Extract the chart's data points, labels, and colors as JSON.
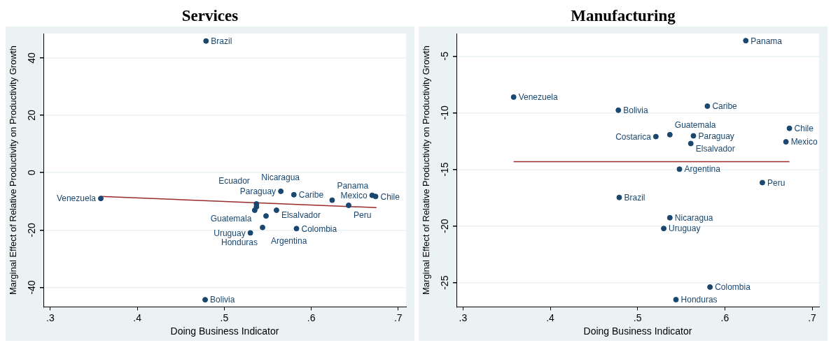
{
  "chart_data": [
    {
      "type": "scatter",
      "title": "Services",
      "xlabel": "Doing Business Indicator",
      "ylabel": "Marginal Effect of Relative Productivity on Productivity Growth",
      "xlim": [
        0.292,
        0.709
      ],
      "ylim": [
        -46.8,
        48.5
      ],
      "xticks": [
        {
          "value": 0.3,
          "label": ".3"
        },
        {
          "value": 0.4,
          "label": ".4"
        },
        {
          "value": 0.5,
          "label": ".5"
        },
        {
          "value": 0.6,
          "label": ".6"
        },
        {
          "value": 0.7,
          "label": ".7"
        }
      ],
      "yticks": [
        -40,
        -20,
        0,
        20,
        40
      ],
      "grid": "y",
      "legend": false,
      "marker": "circle",
      "series": [
        {
          "color": "#1a476f",
          "x": [
            0.479,
            0.358,
            0.565,
            0.58,
            0.624,
            0.67,
            0.674,
            0.643,
            0.537,
            0.537,
            0.535,
            0.56,
            0.548,
            0.544,
            0.583,
            0.53,
            0.478
          ],
          "values": [
            45.9,
            -9.0,
            -6.5,
            -7.7,
            -9.6,
            -7.9,
            -8.3,
            -11.4,
            -10.9,
            -11.9,
            -13.1,
            -13.1,
            -15.1,
            -19.1,
            -19.5,
            -21.0,
            -44.3
          ]
        },
        {
          "type": "line",
          "color": "#9b2a2a",
          "marker": "none",
          "x": [
            0.358,
            0.675
          ],
          "values": [
            -8.3,
            -12.2
          ]
        }
      ],
      "annotations": [
        {
          "text": "Brazil",
          "x": 0.479,
          "y": 45.9
        },
        {
          "text": "Venezuela",
          "x": 0.358,
          "y": -9.0
        },
        {
          "text": "Paraguay",
          "x": 0.565,
          "y": -6.5
        },
        {
          "text": "Caribe",
          "x": 0.58,
          "y": -7.7
        },
        {
          "text": "Panama",
          "x": 0.624,
          "y": -9.6
        },
        {
          "text": "Mexico",
          "x": 0.67,
          "y": -7.9
        },
        {
          "text": "Chile",
          "x": 0.674,
          "y": -8.3
        },
        {
          "text": "Peru",
          "x": 0.643,
          "y": -11.4
        },
        {
          "text": "Guatemala",
          "x": 0.537,
          "y": -10.9
        },
        {
          "text": "Nicaragua",
          "x": 0.537,
          "y": -11.9
        },
        {
          "text": "Ecuador",
          "x": 0.535,
          "y": -13.1
        },
        {
          "text": "Elsalvador",
          "x": 0.56,
          "y": -13.1
        },
        {
          "text": "Argentina",
          "x": 0.548,
          "y": -15.1
        },
        {
          "text": "Honduras",
          "x": 0.544,
          "y": -19.1
        },
        {
          "text": "Colombia",
          "x": 0.583,
          "y": -19.5
        },
        {
          "text": "Uruguay",
          "x": 0.53,
          "y": -21.0
        },
        {
          "text": "Bolivia",
          "x": 0.478,
          "y": -44.3
        }
      ]
    },
    {
      "type": "scatter",
      "title": "Manufacturing",
      "xlabel": "Doing Business Indicator",
      "ylabel": "Marginal Effect of Relative Productivity on Productivity Growth",
      "xlim": [
        0.2925,
        0.708
      ],
      "ylim": [
        -27.14,
        -3.01
      ],
      "xticks": [
        {
          "value": 0.3,
          "label": ".3"
        },
        {
          "value": 0.4,
          "label": ".4"
        },
        {
          "value": 0.5,
          "label": ".5"
        },
        {
          "value": 0.6,
          "label": ".6"
        },
        {
          "value": 0.7,
          "label": ".7"
        }
      ],
      "yticks": [
        -25,
        -20,
        -15,
        -10,
        -5
      ],
      "grid": "y",
      "legend": false,
      "marker": "circle",
      "series": [
        {
          "color": "#1a476f",
          "x": [
            0.624,
            0.358,
            0.478,
            0.58,
            0.674,
            0.67,
            0.521,
            0.537,
            0.564,
            0.561,
            0.548,
            0.643,
            0.479,
            0.537,
            0.53,
            0.583,
            0.544
          ],
          "values": [
            -3.64,
            -8.62,
            -9.78,
            -9.42,
            -11.38,
            -12.57,
            -12.11,
            -11.94,
            -12.04,
            -12.72,
            -14.98,
            -16.17,
            -17.48,
            -19.27,
            -20.22,
            -25.39,
            -26.5
          ]
        },
        {
          "type": "line",
          "color": "#9b2a2a",
          "marker": "none",
          "x": [
            0.358,
            0.674
          ],
          "values": [
            -14.32,
            -14.32
          ]
        }
      ],
      "annotations": [
        {
          "text": "Panama",
          "x": 0.624,
          "y": -3.64
        },
        {
          "text": "Venezuela",
          "x": 0.358,
          "y": -8.62
        },
        {
          "text": "Bolivia",
          "x": 0.478,
          "y": -9.78
        },
        {
          "text": "Caribe",
          "x": 0.58,
          "y": -9.42
        },
        {
          "text": "Chile",
          "x": 0.674,
          "y": -11.38
        },
        {
          "text": "Mexico",
          "x": 0.67,
          "y": -12.57
        },
        {
          "text": "Costarica",
          "x": 0.521,
          "y": -12.11
        },
        {
          "text": "Guatemala",
          "x": 0.537,
          "y": -11.94
        },
        {
          "text": "Paraguay",
          "x": 0.564,
          "y": -12.04
        },
        {
          "text": "Elsalvador",
          "x": 0.561,
          "y": -12.72
        },
        {
          "text": "Argentina",
          "x": 0.548,
          "y": -14.98
        },
        {
          "text": "Peru",
          "x": 0.643,
          "y": -16.17
        },
        {
          "text": "Brazil",
          "x": 0.479,
          "y": -17.48
        },
        {
          "text": "Nicaragua",
          "x": 0.537,
          "y": -19.27
        },
        {
          "text": "Uruguay",
          "x": 0.53,
          "y": -20.22
        },
        {
          "text": "Colombia",
          "x": 0.583,
          "y": -25.39
        },
        {
          "text": "Honduras",
          "x": 0.544,
          "y": -26.5
        }
      ]
    }
  ]
}
